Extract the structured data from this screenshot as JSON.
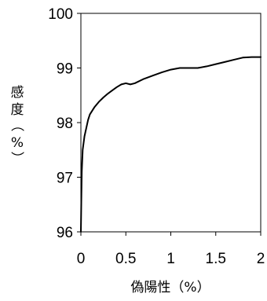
{
  "chart_data": {
    "type": "line",
    "title": "",
    "xlabel": "偽陽性（%）",
    "ylabel": "感度（%）",
    "ylabel_chars": [
      "感",
      "度",
      "（",
      "%",
      "）"
    ],
    "xlim": [
      0,
      2
    ],
    "ylim": [
      96,
      100
    ],
    "x_ticks": [
      0,
      0.5,
      1,
      1.5,
      2
    ],
    "x_tick_labels": [
      "0",
      "0.5",
      "1",
      "1.5",
      "2"
    ],
    "y_ticks": [
      96,
      97,
      98,
      99,
      100
    ],
    "y_tick_labels": [
      "96",
      "97",
      "98",
      "99",
      "100"
    ],
    "grid": false,
    "line_color": "#000000",
    "series": [
      {
        "x": [
          0,
          0.005,
          0.01,
          0.02,
          0.04,
          0.06,
          0.08,
          0.1,
          0.15,
          0.2,
          0.25,
          0.3,
          0.35,
          0.4,
          0.45,
          0.5,
          0.55,
          0.6,
          0.7,
          0.8,
          0.9,
          1.0,
          1.1,
          1.2,
          1.3,
          1.4,
          1.5,
          1.6,
          1.7,
          1.8,
          1.9,
          2.0
        ],
        "y": [
          96.0,
          96.6,
          97.1,
          97.5,
          97.75,
          97.9,
          98.05,
          98.15,
          98.28,
          98.38,
          98.46,
          98.53,
          98.59,
          98.65,
          98.7,
          98.72,
          98.7,
          98.72,
          98.8,
          98.86,
          98.92,
          98.97,
          99.0,
          99.0,
          99.0,
          99.03,
          99.07,
          99.11,
          99.15,
          99.19,
          99.2,
          99.2
        ]
      }
    ]
  }
}
